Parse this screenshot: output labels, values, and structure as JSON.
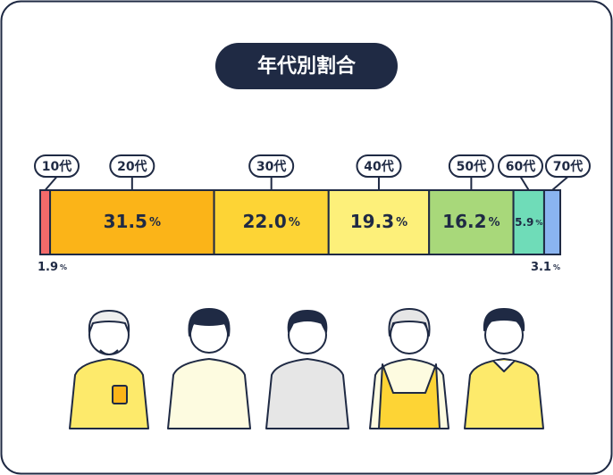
{
  "chart_data": {
    "type": "stacked-bar",
    "title": "年代別割合",
    "categories": [
      "10代",
      "20代",
      "30代",
      "40代",
      "50代",
      "60代",
      "70代"
    ],
    "values": [
      1.9,
      31.5,
      22.0,
      19.3,
      16.2,
      5.9,
      3.1
    ],
    "value_labels": [
      "1.9",
      "31.5",
      "22.0",
      "19.3",
      "16.2",
      "5.9",
      "3.1"
    ],
    "unit": "%",
    "colors": [
      "#f26a6a",
      "#fbb418",
      "#fdd435",
      "#fdf07a",
      "#a8d87a",
      "#6fdcb8",
      "#8ab4f0"
    ]
  }
}
